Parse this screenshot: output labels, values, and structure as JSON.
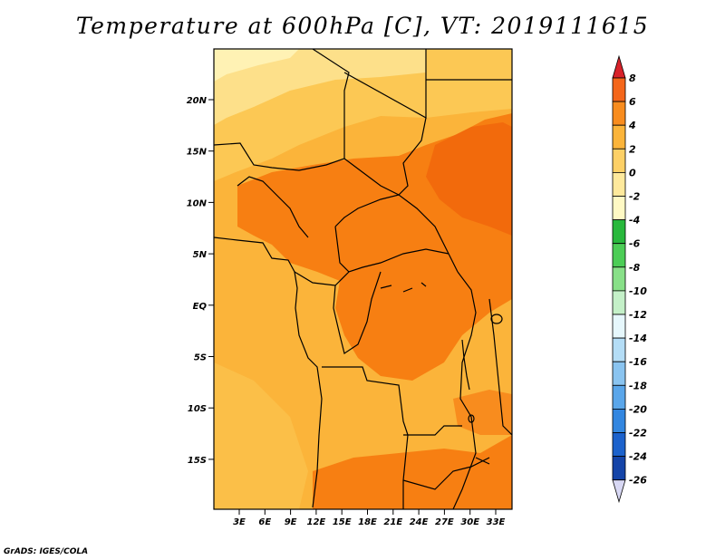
{
  "title": "Temperature at 600hPa [C], VT: 2019111615",
  "credit": "GrADS: IGES/COLA",
  "map": {
    "lat_ticks": [
      "20N",
      "15N",
      "10N",
      "5N",
      "EQ",
      "5S",
      "10S",
      "15S"
    ],
    "lon_ticks": [
      "3E",
      "6E",
      "9E",
      "12E",
      "15E",
      "18E",
      "21E",
      "24E",
      "27E",
      "30E",
      "33E"
    ],
    "palette": {
      "land_warm": "#fbb43a",
      "band_pale": "#fde08a",
      "band_light": "#fcc854",
      "core_hot": "#f77f12",
      "core_hotter": "#f26a0c",
      "border": "#000000"
    }
  },
  "colorbar": {
    "labels": [
      "8",
      "6",
      "4",
      "2",
      "0",
      "-2",
      "-4",
      "-6",
      "-8",
      "-10",
      "-12",
      "-14",
      "-16",
      "-18",
      "-20",
      "-22",
      "-24",
      "-26"
    ],
    "colors": [
      "#e82c14",
      "#f4661a",
      "#f88c1e",
      "#fbb43a",
      "#fdd066",
      "#fee99c",
      "#fff9c4",
      "#28b83c",
      "#4ccd56",
      "#88e088",
      "#c4f0c8",
      "#e6f7fc",
      "#b4ddf6",
      "#8ac4f0",
      "#5aa6ea",
      "#3286e0",
      "#1c62cc",
      "#1444a8",
      "#0c1e74"
    ],
    "top_arrow_color": "#d8222a",
    "bottom_arrow_color": "#d8d8f4"
  }
}
